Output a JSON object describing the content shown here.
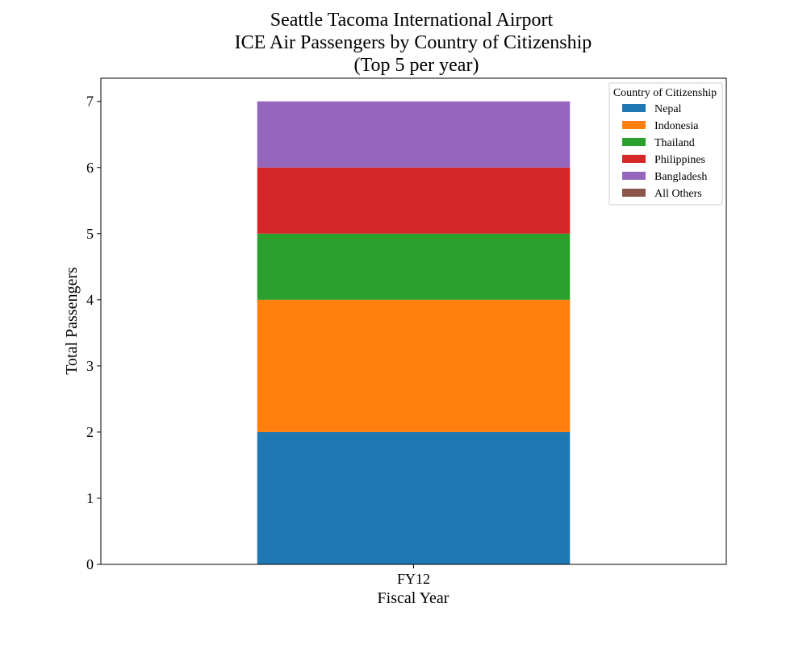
{
  "chart_data": {
    "type": "bar",
    "stacked": true,
    "title": [
      "Seattle Tacoma International Airport",
      "ICE Air Passengers by Country of Citizenship",
      "(Top 5 per year)"
    ],
    "xlabel": "Fiscal Year",
    "ylabel": "Total Passengers",
    "categories": [
      "FY12"
    ],
    "ylim": [
      0,
      7.35
    ],
    "yticks": [
      0,
      1,
      2,
      3,
      4,
      5,
      6,
      7
    ],
    "grid": false,
    "legend": {
      "title": "Country of Citizenship",
      "placement": "top-right"
    },
    "series": [
      {
        "name": "Nepal",
        "values": [
          2
        ],
        "color": "#1f77b4"
      },
      {
        "name": "Indonesia",
        "values": [
          2
        ],
        "color": "#ff7f0e"
      },
      {
        "name": "Thailand",
        "values": [
          1
        ],
        "color": "#2ca02c"
      },
      {
        "name": "Philippines",
        "values": [
          1
        ],
        "color": "#d62728"
      },
      {
        "name": "Bangladesh",
        "values": [
          1
        ],
        "color": "#9467bd"
      },
      {
        "name": "All Others",
        "values": [
          0
        ],
        "color": "#8c564b"
      }
    ]
  }
}
